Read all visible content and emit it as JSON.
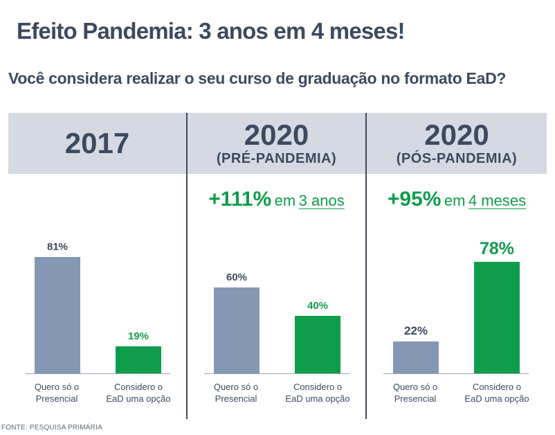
{
  "title": "Efeito Pandemia: 3 anos em 4 meses!",
  "subtitle": "Você considera realizar o seu curso de graduação no formato EaD?",
  "source": "FONTE: PESQUISA PRIMÁRIA",
  "colors": {
    "presencial": "#8598b3",
    "ead": "#0f9d4c",
    "text": "#3c4a5e",
    "header_bg": "#d4d9e2"
  },
  "chart_data": [
    {
      "type": "bar",
      "title": "2017",
      "subtitle": "",
      "growth": null,
      "categories": [
        "Quero só o\nPresencial",
        "Considero o\nEaD uma opção"
      ],
      "values": [
        81,
        19
      ],
      "value_labels": [
        "81%",
        "19%"
      ],
      "ylim": [
        0,
        100
      ]
    },
    {
      "type": "bar",
      "title": "2020",
      "subtitle": "(PRÉ-PANDEMIA)",
      "growth": {
        "pct": "+111%",
        "word": "em",
        "period": "3 anos"
      },
      "categories": [
        "Quero só o\nPresencial",
        "Considero o\nEaD uma opção"
      ],
      "values": [
        60,
        40
      ],
      "value_labels": [
        "60%",
        "40%"
      ],
      "ylim": [
        0,
        100
      ]
    },
    {
      "type": "bar",
      "title": "2020",
      "subtitle": "(PÓS-PANDEMIA)",
      "growth": {
        "pct": "+95%",
        "word": "em",
        "period": "4 meses"
      },
      "categories": [
        "Quero só o\nPresencial",
        "Considero o\nEaD uma opção"
      ],
      "values": [
        22,
        78
      ],
      "value_labels": [
        "22%",
        "78%"
      ],
      "ylim": [
        0,
        100
      ]
    }
  ]
}
